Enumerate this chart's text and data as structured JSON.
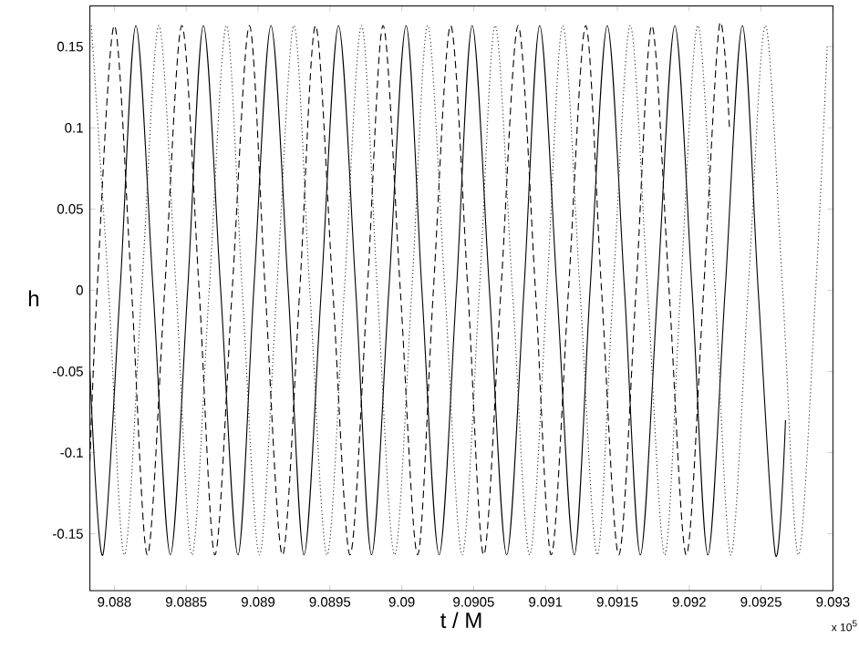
{
  "chart_data": {
    "type": "line",
    "xlabel": "t / M",
    "ylabel": "h",
    "annotations": [
      "x 10$^{5}$"
    ],
    "xlim": [
      9.08783,
      9.093
    ],
    "ylim": [
      -0.185,
      0.175
    ],
    "xticks": [
      9.088,
      9.0885,
      9.089,
      9.0895,
      9.09,
      9.0905,
      9.091,
      9.0915,
      9.092,
      9.0925,
      9.093
    ],
    "yticks": [
      -0.15,
      -0.1,
      -0.05,
      0,
      0.05,
      0.1,
      0.15
    ],
    "grid": false,
    "marker": "none",
    "series": [
      {
        "color": "#000000",
        "line_style": "solid",
        "x": [
          9.08783,
          9.08792,
          9.08804,
          9.08815,
          9.08827,
          9.08839,
          9.08851,
          9.08862,
          9.08874,
          9.08886,
          9.08897,
          9.08909,
          9.08921,
          9.08932,
          9.08944,
          9.08956,
          9.08968,
          9.08979,
          9.08991,
          9.09003,
          9.09014,
          9.09026,
          9.09038,
          9.09049,
          9.09061,
          9.09073,
          9.09085,
          9.09096,
          9.09108,
          9.0912,
          9.09131,
          9.09143,
          9.09155,
          9.09166,
          9.09178,
          9.0919,
          9.09202,
          9.09213,
          9.09225,
          9.09237,
          9.09248,
          9.0926,
          9.09267
        ],
        "values": [
          -0.05,
          -0.163,
          0,
          0.163,
          0,
          -0.163,
          0,
          0.163,
          0,
          -0.163,
          0,
          0.163,
          0,
          -0.163,
          0,
          0.163,
          0,
          -0.163,
          0,
          0.163,
          0,
          -0.163,
          0,
          0.163,
          0,
          -0.163,
          0,
          0.163,
          0,
          -0.163,
          0,
          0.163,
          0,
          -0.163,
          0,
          0.163,
          0,
          -0.163,
          0,
          0.163,
          0,
          -0.163,
          -0.08
        ]
      },
      {
        "color": "#000000",
        "line_style": "dashed",
        "x": [
          9.08783,
          9.08788,
          9.088,
          9.08812,
          9.08823,
          9.08835,
          9.08847,
          9.08859,
          9.0887,
          9.08882,
          9.08894,
          9.08905,
          9.08917,
          9.08929,
          9.0894,
          9.08952,
          9.08964,
          9.08976,
          9.08987,
          9.08999,
          9.09011,
          9.09022,
          9.09034,
          9.09046,
          9.09057,
          9.09069,
          9.09081,
          9.09093,
          9.09104,
          9.09116,
          9.09128,
          9.09139,
          9.09151,
          9.09163,
          9.09174,
          9.09186,
          9.09198,
          9.0921,
          9.09221,
          9.09228
        ],
        "values": [
          -0.105,
          0,
          0.163,
          0,
          -0.163,
          0,
          0.163,
          0,
          -0.163,
          0,
          0.163,
          0,
          -0.163,
          0,
          0.163,
          0,
          -0.163,
          0,
          0.163,
          0,
          -0.163,
          0,
          0.163,
          0,
          -0.163,
          0,
          0.163,
          0,
          -0.163,
          0,
          0.163,
          0,
          -0.163,
          0,
          0.163,
          0,
          -0.163,
          0,
          0.163,
          0.1
        ]
      },
      {
        "color": "#333333",
        "line_style": "dotted",
        "x": [
          9.08784,
          9.08796,
          9.08807,
          9.08819,
          9.08831,
          9.08843,
          9.08854,
          9.08866,
          9.08878,
          9.08889,
          9.08901,
          9.08913,
          9.08925,
          9.08936,
          9.08948,
          9.0896,
          9.08972,
          9.08983,
          9.08995,
          9.09007,
          9.09018,
          9.0903,
          9.09042,
          9.09054,
          9.09065,
          9.09077,
          9.09089,
          9.09101,
          9.09112,
          9.09124,
          9.09136,
          9.09147,
          9.09159,
          9.09171,
          9.09183,
          9.09194,
          9.09206,
          9.09218,
          9.09229,
          9.09241,
          9.09253,
          9.09265,
          9.09276,
          9.09288,
          9.09296
        ],
        "values": [
          0.163,
          0,
          -0.163,
          0,
          0.163,
          0,
          -0.163,
          0,
          0.163,
          0,
          -0.163,
          0,
          0.163,
          0,
          -0.163,
          0,
          0.163,
          0,
          -0.163,
          0,
          0.163,
          0,
          -0.163,
          0,
          0.163,
          0,
          -0.163,
          0,
          0.163,
          0,
          -0.163,
          0,
          0.163,
          0,
          -0.163,
          0,
          0.163,
          0,
          -0.163,
          0,
          0.163,
          0,
          -0.163,
          0,
          0.15
        ]
      }
    ]
  }
}
